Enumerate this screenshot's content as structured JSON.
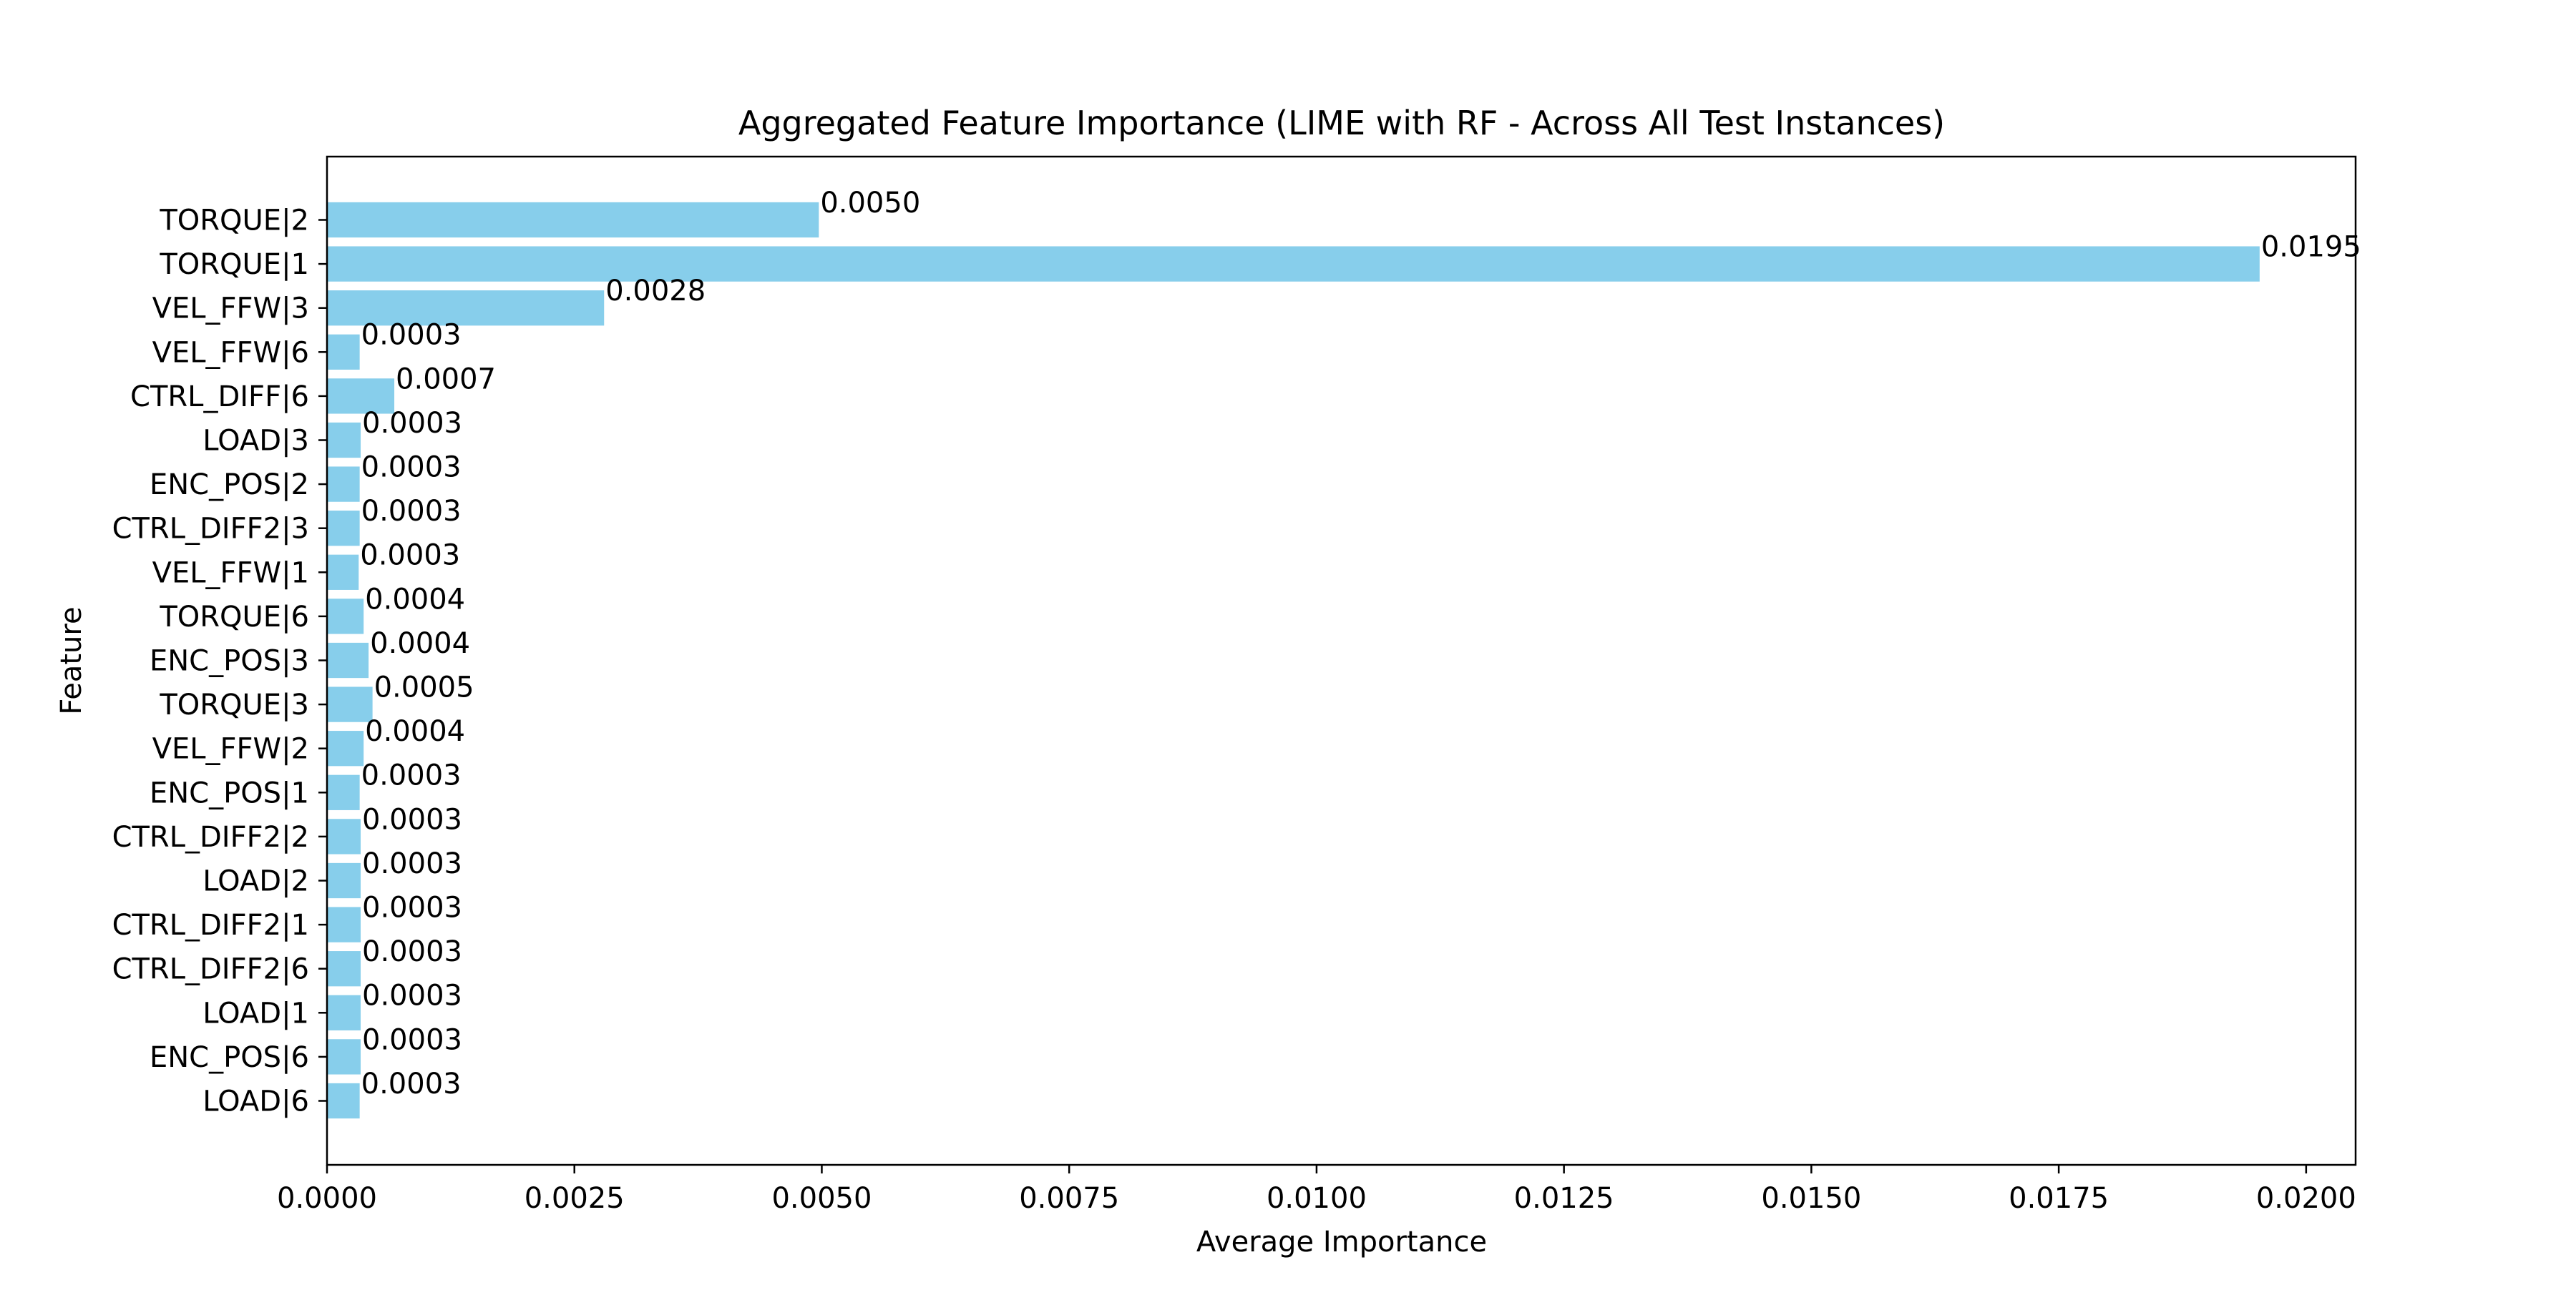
{
  "chart_data": {
    "type": "bar",
    "orientation": "horizontal",
    "title": "Aggregated Feature Importance (LIME with RF - Across All Test Instances)",
    "xlabel": "Average Importance",
    "ylabel": "Feature",
    "xlim": [
      0,
      0.0205
    ],
    "xticks": [
      0.0,
      0.0025,
      0.005,
      0.0075,
      0.01,
      0.0125,
      0.015,
      0.0175,
      0.02
    ],
    "xtick_labels": [
      "0.0000",
      "0.0025",
      "0.0050",
      "0.0075",
      "0.0100",
      "0.0125",
      "0.0150",
      "0.0175",
      "0.0200"
    ],
    "grid": false,
    "bar_color": "#87ceeb",
    "categories": [
      "TORQUE|2",
      "TORQUE|1",
      "VEL_FFW|3",
      "VEL_FFW|6",
      "CTRL_DIFF|6",
      "LOAD|3",
      "ENC_POS|2",
      "CTRL_DIFF2|3",
      "VEL_FFW|1",
      "TORQUE|6",
      "ENC_POS|3",
      "TORQUE|3",
      "VEL_FFW|2",
      "ENC_POS|1",
      "CTRL_DIFF2|2",
      "LOAD|2",
      "CTRL_DIFF2|1",
      "CTRL_DIFF2|6",
      "LOAD|1",
      "ENC_POS|6",
      "LOAD|6"
    ],
    "values": [
      0.00497,
      0.01953,
      0.0028,
      0.00033,
      0.00068,
      0.00034,
      0.00033,
      0.00033,
      0.00032,
      0.00037,
      0.00042,
      0.00046,
      0.00037,
      0.00033,
      0.00034,
      0.00034,
      0.00034,
      0.00034,
      0.00034,
      0.00034,
      0.00033
    ],
    "value_labels": [
      "0.0050",
      "0.0195",
      "0.0028",
      "0.0003",
      "0.0007",
      "0.0003",
      "0.0003",
      "0.0003",
      "0.0003",
      "0.0004",
      "0.0004",
      "0.0005",
      "0.0004",
      "0.0003",
      "0.0003",
      "0.0003",
      "0.0003",
      "0.0003",
      "0.0003",
      "0.0003",
      "0.0003"
    ]
  }
}
